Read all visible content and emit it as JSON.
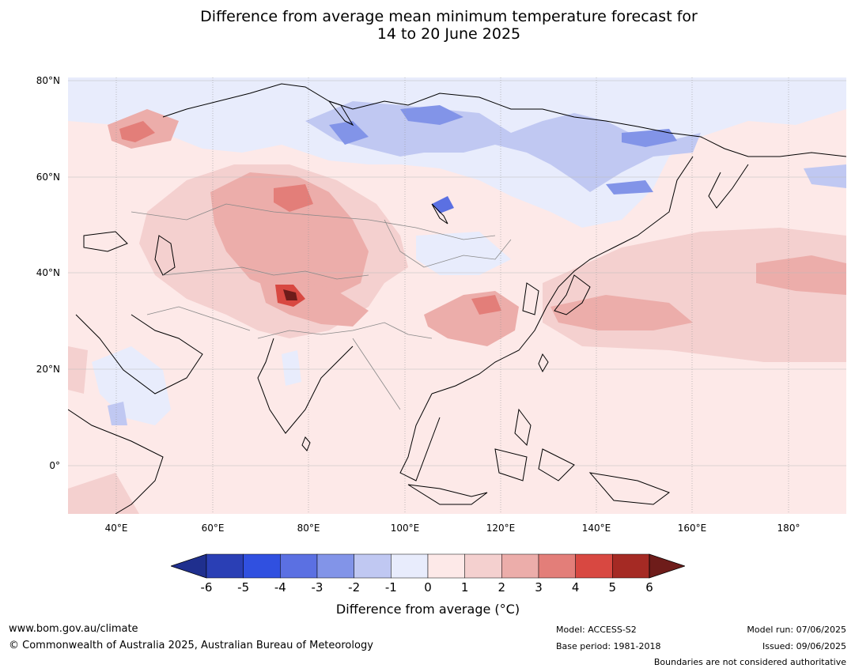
{
  "title_line1": "Difference from average mean minimum temperature forecast for",
  "title_line2": "14 to 20 June 2025",
  "lat_labels": [
    "80°N",
    "60°N",
    "40°N",
    "20°N",
    "0°"
  ],
  "lon_labels": [
    "40°E",
    "60°E",
    "80°E",
    "100°E",
    "120°E",
    "140°E",
    "160°E",
    "180°"
  ],
  "colorbar": {
    "ticks": [
      "-6",
      "-5",
      "-4",
      "-3",
      "-2",
      "-1",
      "0",
      "1",
      "2",
      "3",
      "4",
      "5",
      "6"
    ],
    "colors": [
      "#1f2f8e",
      "#2a3fb5",
      "#3050e0",
      "#5b70e2",
      "#8294e8",
      "#c0c8f2",
      "#e8ecfc",
      "#fde9e8",
      "#f4d0cf",
      "#ecadaa",
      "#e37e79",
      "#d84841",
      "#a52a24",
      "#6e1c1a"
    ],
    "label": "Difference from average (°C)"
  },
  "footer": {
    "website": "www.bom.gov.au/climate",
    "copyright": "© Commonwealth of Australia 2025, Australian Bureau of Meteorology",
    "model": "Model: ACCESS-S2",
    "base_period": "Base period: 1981-2018",
    "model_run": "Model run: 07/06/2025",
    "issued": "Issued: 09/06/2025",
    "disclaimer": "Boundaries are not considered authoritative"
  }
}
